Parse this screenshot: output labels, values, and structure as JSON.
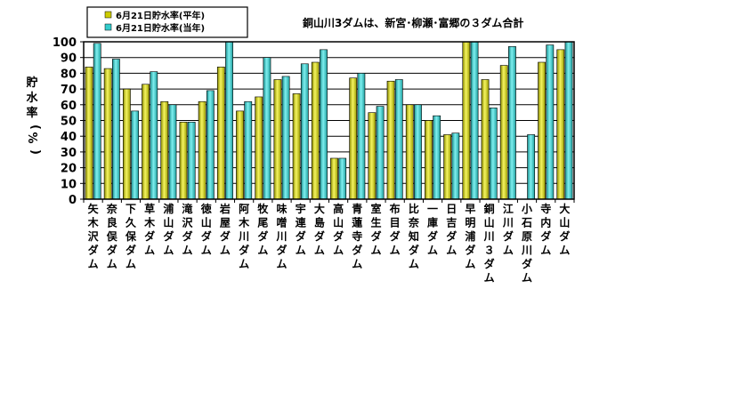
{
  "chart_data": {
    "type": "bar",
    "title": "",
    "annotation": "銅山川3ダムは、新宮･柳瀬･富郷の３ダム合計",
    "ylabel": "貯水率(%)",
    "xlabel": "",
    "ylim": [
      0,
      100
    ],
    "yticks": [
      0,
      10,
      20,
      30,
      40,
      50,
      60,
      70,
      80,
      90,
      100
    ],
    "grid": true,
    "legend_position": "top-left",
    "categories": [
      "矢木沢ダム",
      "奈良俣ダム",
      "下久保ダム",
      "草木ダム",
      "浦山ダム",
      "滝沢ダム",
      "徳山ダム",
      "岩屋ダム",
      "阿木川ダム",
      "牧尾ダム",
      "味噌川ダム",
      "宇連ダム",
      "大島ダム",
      "高山ダム",
      "青蓮寺ダム",
      "室生ダム",
      "布目ダム",
      "比奈知ダム",
      "一庫ダム",
      "日吉ダム",
      "早明浦ダム",
      "銅山川３ダム",
      "江川ダム",
      "小石原川ダム",
      "寺内ダム",
      "大山ダム"
    ],
    "series": [
      {
        "name": "6月21日貯水率(平年)",
        "color": "#CCCC00",
        "values": [
          84,
          83,
          70,
          73,
          62,
          49,
          62,
          84,
          56,
          65,
          76,
          67,
          87,
          26,
          77,
          55,
          75,
          60,
          50,
          41,
          100,
          76,
          85,
          null,
          87,
          95
        ]
      },
      {
        "name": "6月21日貯水率(当年)",
        "color": "#33CCCC",
        "values": [
          99,
          89,
          56,
          81,
          60,
          49,
          69,
          100,
          62,
          90,
          78,
          86,
          95,
          26,
          80,
          59,
          76,
          60,
          53,
          42,
          100,
          58,
          97,
          41,
          98,
          100
        ]
      }
    ]
  }
}
